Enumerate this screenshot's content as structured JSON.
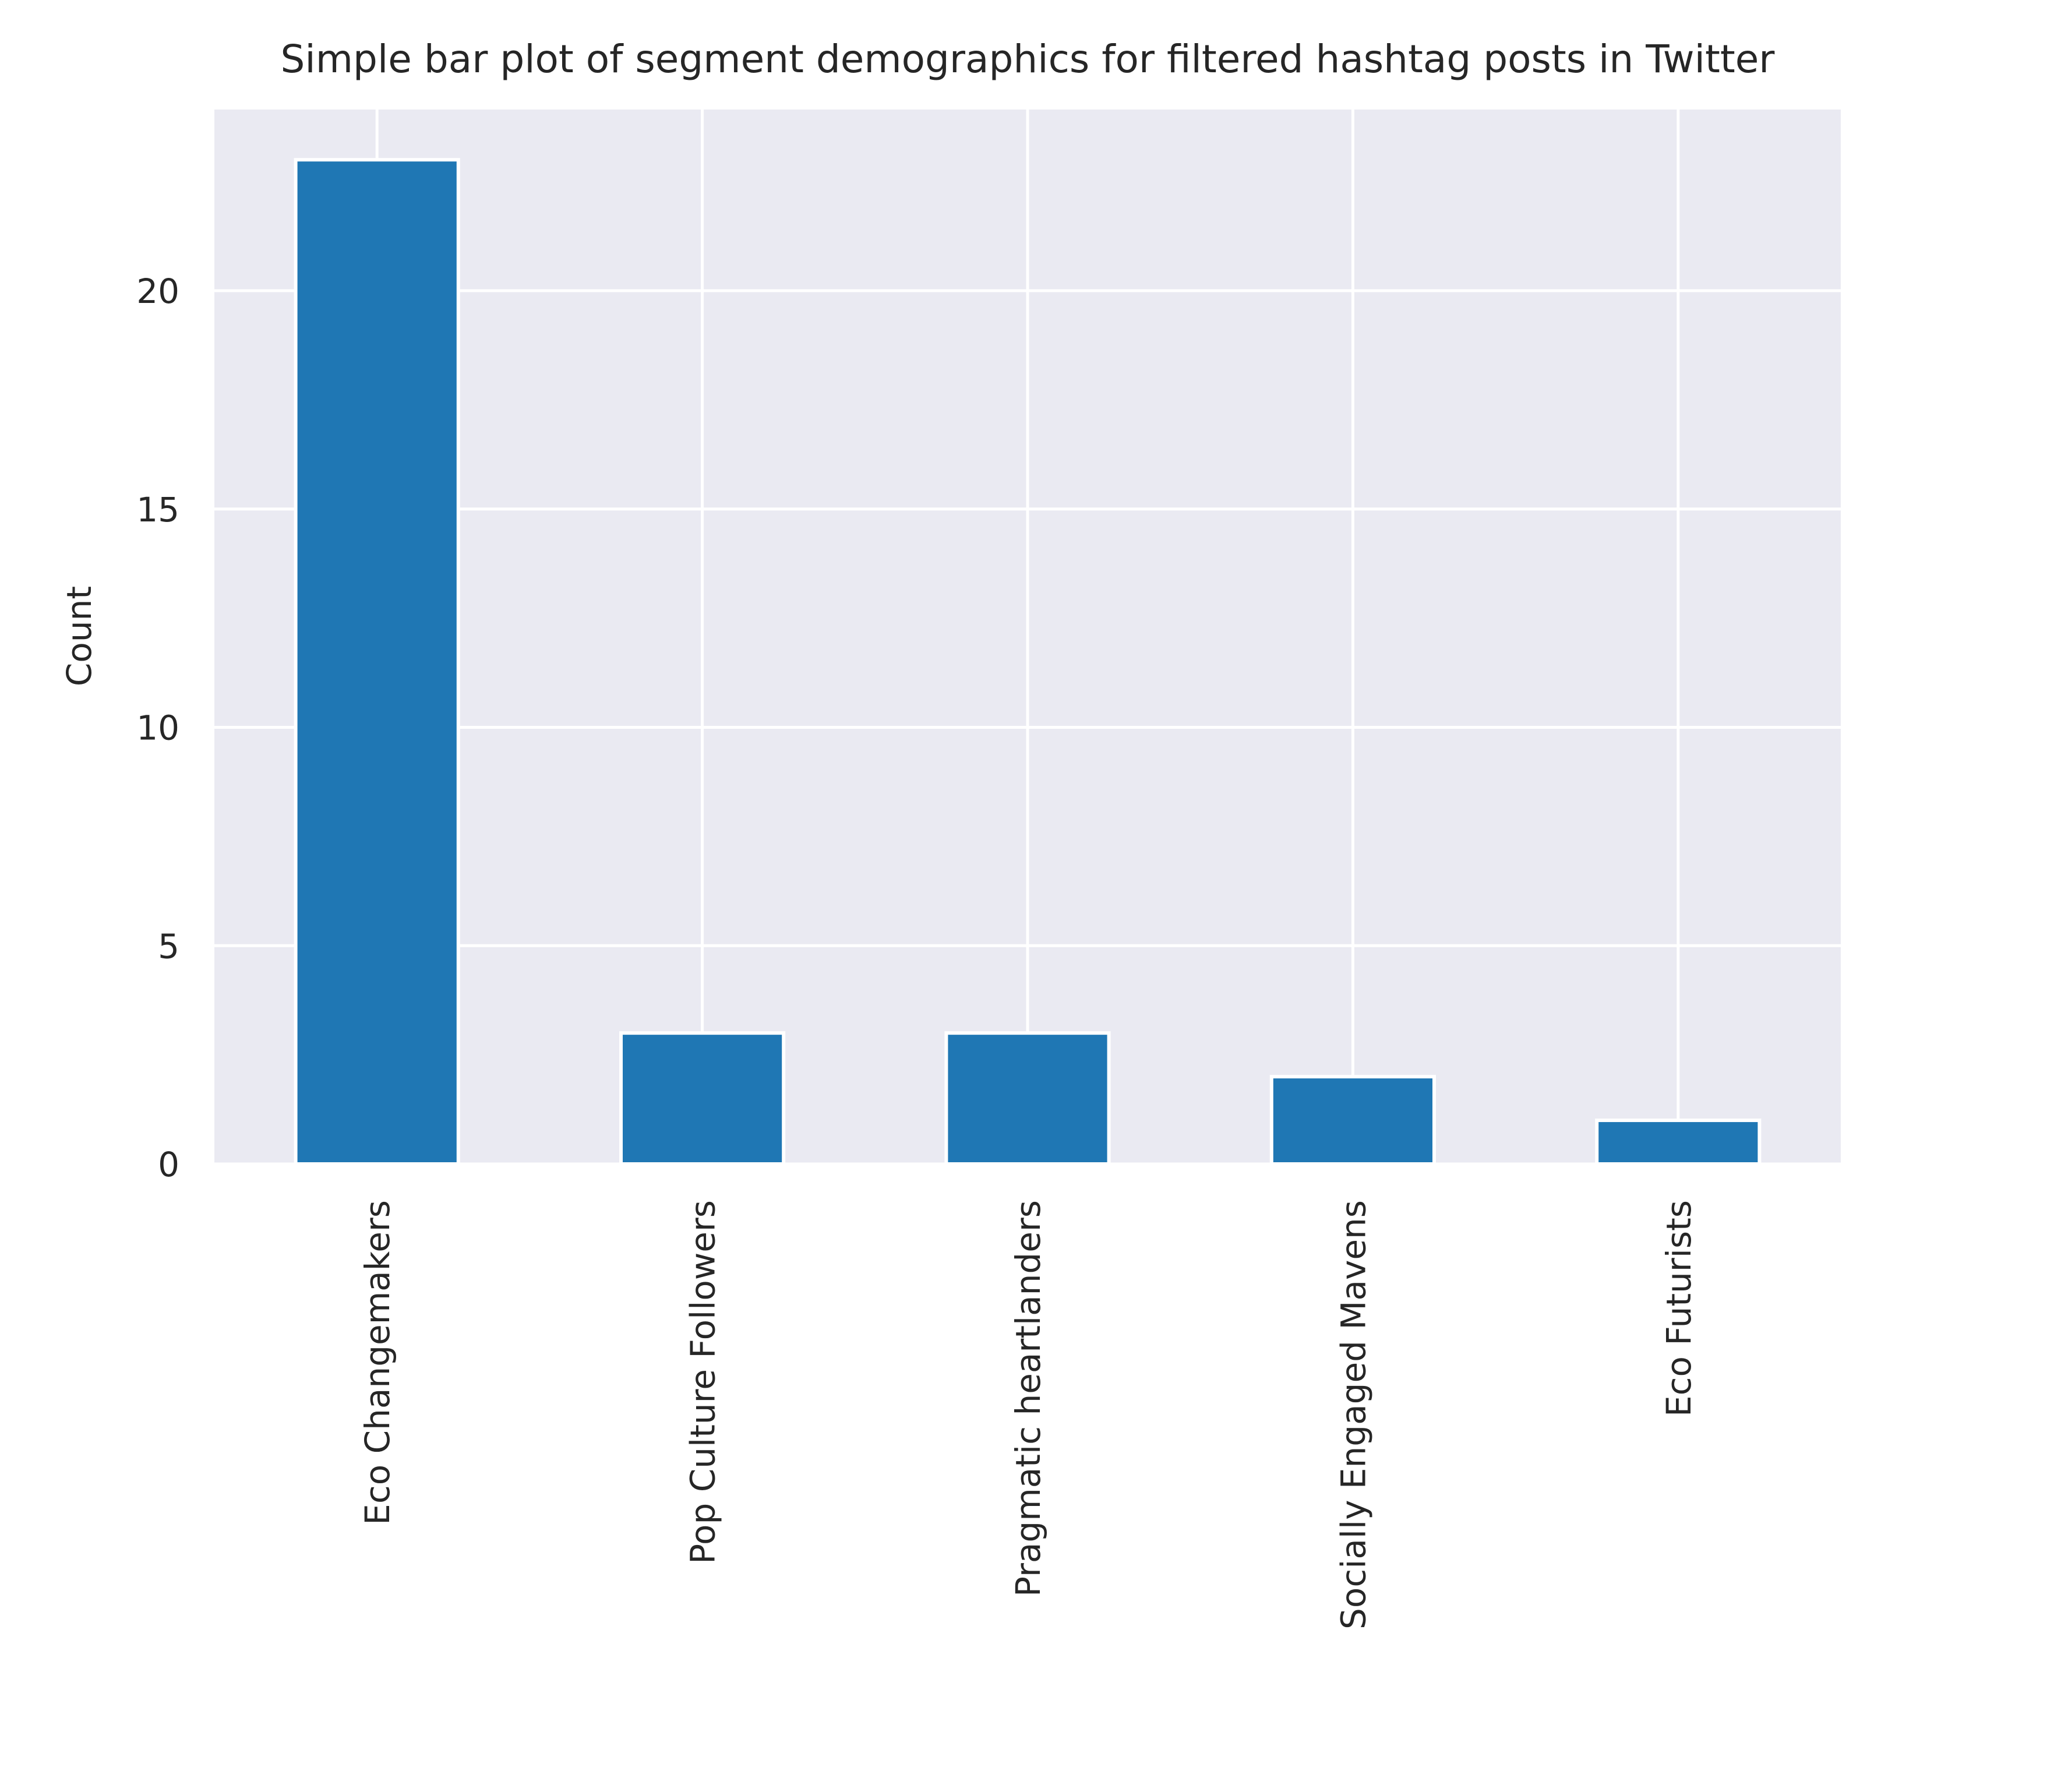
{
  "chart_data": {
    "type": "bar",
    "title": "Simple bar plot of segment demographics for filtered hashtag posts in Twitter",
    "xlabel": "",
    "ylabel": "Count",
    "categories": [
      "Eco Changemakers",
      "Pop Culture Followers",
      "Pragmatic heartlanders",
      "Socially Engaged Mavens",
      "Eco Futurists"
    ],
    "values": [
      23,
      3,
      3,
      2,
      1
    ],
    "ylim": [
      0,
      24.15
    ],
    "yticks": [
      0,
      5,
      10,
      15,
      20
    ],
    "grid": true,
    "legend": "none",
    "colors": {
      "bar": "#1f77b4",
      "plot_background": "#eaeaf2",
      "grid": "#ffffff",
      "text": "#262626"
    }
  }
}
